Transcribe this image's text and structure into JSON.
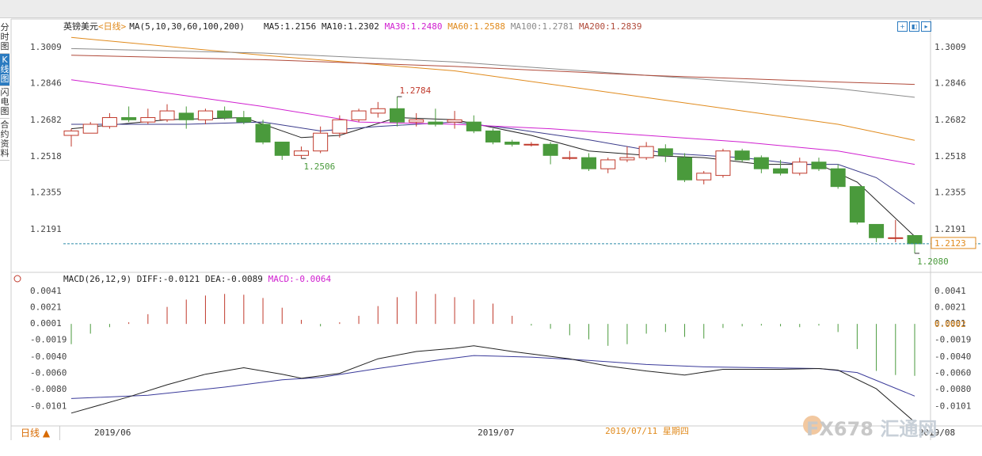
{
  "header": {
    "instrument": "英镑美元",
    "period_tag": "<日线>",
    "ma_spec": "MA(5,10,30,60,100,200)",
    "ma_values": [
      {
        "label": "MA5:1.2156",
        "color": "#222222"
      },
      {
        "label": "MA10:1.2302",
        "color": "#222222"
      },
      {
        "label": "MA30:1.2480",
        "color": "#d020d0"
      },
      {
        "label": "MA60:1.2588",
        "color": "#e08a1c"
      },
      {
        "label": "MA100:1.2781",
        "color": "#8a8a8a"
      },
      {
        "label": "MA200:1.2839",
        "color": "#b04a3a"
      }
    ]
  },
  "sidebar": {
    "tabs": [
      {
        "label": "分时图",
        "active": false
      },
      {
        "label": "K线图",
        "active": true
      },
      {
        "label": "闪电图",
        "active": false
      },
      {
        "label": "合约资料",
        "active": false
      }
    ]
  },
  "toolbar": {
    "icons": [
      "expand-icon",
      "prev-icon",
      "next-icon"
    ]
  },
  "footer": {
    "period_button": "日线 ▲",
    "date_hover": "2019/07/11 星期四"
  },
  "watermark": {
    "text": "FX678",
    "cn": "汇通网"
  },
  "colors": {
    "up": "#c0392b",
    "down": "#4a9a3c",
    "ma5": "#222222",
    "ma10": "#3a3a8a",
    "ma30": "#d020d0",
    "ma60": "#e08a1c",
    "ma100": "#8a8a8a",
    "ma200": "#b04a3a",
    "last_price": "#2a8aa8"
  },
  "chart_data": [
    {
      "type": "candlestick",
      "title": "英镑美元<日线>",
      "ylim": [
        1.2023,
        1.3069
      ],
      "y_ticks": [
        "1.3009",
        "1.2846",
        "1.2682",
        "1.2518",
        "1.2355",
        "1.2191"
      ],
      "x_labels": [
        {
          "label": "2019/06",
          "index": 1
        },
        {
          "label": "2019/07",
          "index": 21
        },
        {
          "label": "2019/08",
          "index": 44
        }
      ],
      "candles": [
        {
          "o": 1.261,
          "h": 1.264,
          "l": 1.256,
          "c": 1.263
        },
        {
          "o": 1.262,
          "h": 1.267,
          "l": 1.262,
          "c": 1.266
        },
        {
          "o": 1.265,
          "h": 1.271,
          "l": 1.264,
          "c": 1.269
        },
        {
          "o": 1.269,
          "h": 1.274,
          "l": 1.267,
          "c": 1.268
        },
        {
          "o": 1.267,
          "h": 1.273,
          "l": 1.266,
          "c": 1.269
        },
        {
          "o": 1.268,
          "h": 1.275,
          "l": 1.267,
          "c": 1.272
        },
        {
          "o": 1.271,
          "h": 1.274,
          "l": 1.264,
          "c": 1.268
        },
        {
          "o": 1.268,
          "h": 1.273,
          "l": 1.266,
          "c": 1.272
        },
        {
          "o": 1.272,
          "h": 1.274,
          "l": 1.268,
          "c": 1.269
        },
        {
          "o": 1.269,
          "h": 1.272,
          "l": 1.266,
          "c": 1.267
        },
        {
          "o": 1.266,
          "h": 1.268,
          "l": 1.257,
          "c": 1.258
        },
        {
          "o": 1.258,
          "h": 1.258,
          "l": 1.25,
          "c": 1.252
        },
        {
          "o": 1.252,
          "h": 1.256,
          "l": 1.2506,
          "c": 1.254
        },
        {
          "o": 1.254,
          "h": 1.265,
          "l": 1.253,
          "c": 1.262
        },
        {
          "o": 1.262,
          "h": 1.27,
          "l": 1.26,
          "c": 1.268
        },
        {
          "o": 1.268,
          "h": 1.273,
          "l": 1.267,
          "c": 1.272
        },
        {
          "o": 1.271,
          "h": 1.276,
          "l": 1.269,
          "c": 1.273
        },
        {
          "o": 1.273,
          "h": 1.2784,
          "l": 1.265,
          "c": 1.267
        },
        {
          "o": 1.267,
          "h": 1.271,
          "l": 1.265,
          "c": 1.268
        },
        {
          "o": 1.267,
          "h": 1.273,
          "l": 1.265,
          "c": 1.266
        },
        {
          "o": 1.267,
          "h": 1.272,
          "l": 1.264,
          "c": 1.268
        },
        {
          "o": 1.267,
          "h": 1.27,
          "l": 1.262,
          "c": 1.263
        },
        {
          "o": 1.263,
          "h": 1.264,
          "l": 1.257,
          "c": 1.258
        },
        {
          "o": 1.258,
          "h": 1.259,
          "l": 1.256,
          "c": 1.257
        },
        {
          "o": 1.257,
          "h": 1.258,
          "l": 1.256,
          "c": 1.257
        },
        {
          "o": 1.257,
          "h": 1.258,
          "l": 1.248,
          "c": 1.252
        },
        {
          "o": 1.251,
          "h": 1.254,
          "l": 1.25,
          "c": 1.251
        },
        {
          "o": 1.251,
          "h": 1.253,
          "l": 1.245,
          "c": 1.246
        },
        {
          "o": 1.246,
          "h": 1.251,
          "l": 1.244,
          "c": 1.25
        },
        {
          "o": 1.25,
          "h": 1.256,
          "l": 1.249,
          "c": 1.251
        },
        {
          "o": 1.251,
          "h": 1.258,
          "l": 1.25,
          "c": 1.256
        },
        {
          "o": 1.255,
          "h": 1.257,
          "l": 1.249,
          "c": 1.252
        },
        {
          "o": 1.251,
          "h": 1.253,
          "l": 1.24,
          "c": 1.241
        },
        {
          "o": 1.241,
          "h": 1.245,
          "l": 1.239,
          "c": 1.244
        },
        {
          "o": 1.243,
          "h": 1.255,
          "l": 1.242,
          "c": 1.254
        },
        {
          "o": 1.254,
          "h": 1.255,
          "l": 1.249,
          "c": 1.25
        },
        {
          "o": 1.251,
          "h": 1.252,
          "l": 1.244,
          "c": 1.246
        },
        {
          "o": 1.246,
          "h": 1.25,
          "l": 1.243,
          "c": 1.244
        },
        {
          "o": 1.244,
          "h": 1.251,
          "l": 1.243,
          "c": 1.249
        },
        {
          "o": 1.249,
          "h": 1.251,
          "l": 1.245,
          "c": 1.246
        },
        {
          "o": 1.246,
          "h": 1.248,
          "l": 1.237,
          "c": 1.238
        },
        {
          "o": 1.238,
          "h": 1.238,
          "l": 1.221,
          "c": 1.222
        },
        {
          "o": 1.221,
          "h": 1.221,
          "l": 1.213,
          "c": 1.215
        },
        {
          "o": 1.215,
          "h": 1.223,
          "l": 1.213,
          "c": 1.215
        },
        {
          "o": 1.216,
          "h": 1.216,
          "l": 1.208,
          "c": 1.2123
        }
      ],
      "ma_series": [
        {
          "name": "MA5",
          "start": 1.264,
          "points": [
            [
              0,
              1.264
            ],
            [
              5,
              1.268
            ],
            [
              9,
              1.269
            ],
            [
              12,
              1.26
            ],
            [
              14,
              1.261
            ],
            [
              17,
              1.269
            ],
            [
              20,
              1.268
            ],
            [
              24,
              1.261
            ],
            [
              27,
              1.254
            ],
            [
              30,
              1.252
            ],
            [
              33,
              1.251
            ],
            [
              36,
              1.248
            ],
            [
              39,
              1.248
            ],
            [
              41,
              1.24
            ],
            [
              44,
              1.2156
            ]
          ]
        },
        {
          "name": "MA10",
          "points": [
            [
              0,
              1.266
            ],
            [
              6,
              1.266
            ],
            [
              10,
              1.267
            ],
            [
              13,
              1.263
            ],
            [
              16,
              1.265
            ],
            [
              20,
              1.267
            ],
            [
              23,
              1.264
            ],
            [
              27,
              1.259
            ],
            [
              31,
              1.253
            ],
            [
              35,
              1.251
            ],
            [
              38,
              1.248
            ],
            [
              40,
              1.248
            ],
            [
              42,
              1.242
            ],
            [
              44,
              1.2302
            ]
          ]
        },
        {
          "name": "MA30",
          "points": [
            [
              0,
              1.286
            ],
            [
              10,
              1.274
            ],
            [
              15,
              1.267
            ],
            [
              20,
              1.266
            ],
            [
              25,
              1.264
            ],
            [
              30,
              1.261
            ],
            [
              35,
              1.258
            ],
            [
              40,
              1.254
            ],
            [
              44,
              1.248
            ]
          ]
        },
        {
          "name": "MA60",
          "points": [
            [
              0,
              1.305
            ],
            [
              10,
              1.297
            ],
            [
              20,
              1.29
            ],
            [
              30,
              1.278
            ],
            [
              40,
              1.266
            ],
            [
              44,
              1.2588
            ]
          ]
        },
        {
          "name": "MA100",
          "points": [
            [
              0,
              1.3
            ],
            [
              10,
              1.298
            ],
            [
              20,
              1.294
            ],
            [
              30,
              1.288
            ],
            [
              40,
              1.282
            ],
            [
              44,
              1.2781
            ]
          ]
        },
        {
          "name": "MA200",
          "points": [
            [
              0,
              1.297
            ],
            [
              10,
              1.295
            ],
            [
              20,
              1.292
            ],
            [
              30,
              1.288
            ],
            [
              40,
              1.285
            ],
            [
              44,
              1.2839
            ]
          ]
        }
      ],
      "annotations": [
        {
          "label": "1.2784",
          "index": 17,
          "value": 1.2784,
          "kind": "high"
        },
        {
          "label": "1.2506",
          "index": 12,
          "value": 1.2506,
          "kind": "low"
        },
        {
          "label": "1.2080",
          "index": 44,
          "value": 1.208,
          "kind": "low"
        }
      ],
      "last_price": {
        "label": "1.2123",
        "value": 1.2123
      }
    },
    {
      "type": "macd",
      "title": "MACD(26,12,9)",
      "indicator_labels": [
        {
          "text": "MACD(26,12,9)",
          "color": "#222222"
        },
        {
          "text": "DIFF:-0.0121",
          "color": "#222222"
        },
        {
          "text": "DEA:-0.0089",
          "color": "#222222"
        },
        {
          "text": "MACD:-0.0064",
          "color": "#d020d0"
        }
      ],
      "ylim": [
        -0.0118,
        0.0048
      ],
      "y_ticks": [
        "0.0041",
        "0.0021",
        "0.0001",
        "-0.0019",
        "-0.0040",
        "-0.0060",
        "-0.0080",
        "-0.0101"
      ],
      "y_tick_values": [
        0.0041,
        0.0021,
        0.0001,
        -0.0019,
        -0.004,
        -0.006,
        -0.008,
        -0.0101
      ],
      "marker": {
        "label": "0.0002",
        "value": 0.0002
      },
      "histogram": [
        -0.0025,
        -0.0012,
        -0.0004,
        0.0002,
        0.0012,
        0.0021,
        0.003,
        0.0035,
        0.0037,
        0.0036,
        0.0032,
        0.002,
        0.0005,
        -0.0003,
        0.0002,
        0.001,
        0.0022,
        0.0033,
        0.004,
        0.0037,
        0.0033,
        0.003,
        0.0025,
        0.001,
        -0.0002,
        -0.0006,
        -0.0014,
        -0.0019,
        -0.0027,
        -0.0025,
        -0.0012,
        -0.001,
        -0.0016,
        -0.0018,
        -0.0005,
        -0.0003,
        -0.0002,
        -0.0003,
        -0.0004,
        -0.0002,
        -0.001,
        -0.0031,
        -0.0058,
        -0.0063,
        -0.0064
      ],
      "diff": [
        [
          0,
          -0.011
        ],
        [
          3,
          -0.009
        ],
        [
          5,
          -0.0075
        ],
        [
          7,
          -0.0062
        ],
        [
          9,
          -0.0054
        ],
        [
          11,
          -0.0062
        ],
        [
          12,
          -0.0067
        ],
        [
          14,
          -0.0061
        ],
        [
          16,
          -0.0043
        ],
        [
          18,
          -0.0034
        ],
        [
          20,
          -0.003
        ],
        [
          21,
          -0.0027
        ],
        [
          23,
          -0.0034
        ],
        [
          26,
          -0.0043
        ],
        [
          28,
          -0.0052
        ],
        [
          30,
          -0.0058
        ],
        [
          32,
          -0.0063
        ],
        [
          34,
          -0.0056
        ],
        [
          37,
          -0.0056
        ],
        [
          39,
          -0.0055
        ],
        [
          40,
          -0.0057
        ],
        [
          42,
          -0.008
        ],
        [
          44,
          -0.0121
        ]
      ],
      "dea": [
        [
          0,
          -0.0092
        ],
        [
          4,
          -0.0088
        ],
        [
          8,
          -0.0078
        ],
        [
          11,
          -0.0069
        ],
        [
          13,
          -0.0066
        ],
        [
          16,
          -0.0055
        ],
        [
          19,
          -0.0045
        ],
        [
          21,
          -0.0039
        ],
        [
          24,
          -0.0041
        ],
        [
          27,
          -0.0045
        ],
        [
          30,
          -0.005
        ],
        [
          33,
          -0.0053
        ],
        [
          36,
          -0.0054
        ],
        [
          39,
          -0.0055
        ],
        [
          41,
          -0.006
        ],
        [
          44,
          -0.0089
        ]
      ]
    }
  ]
}
